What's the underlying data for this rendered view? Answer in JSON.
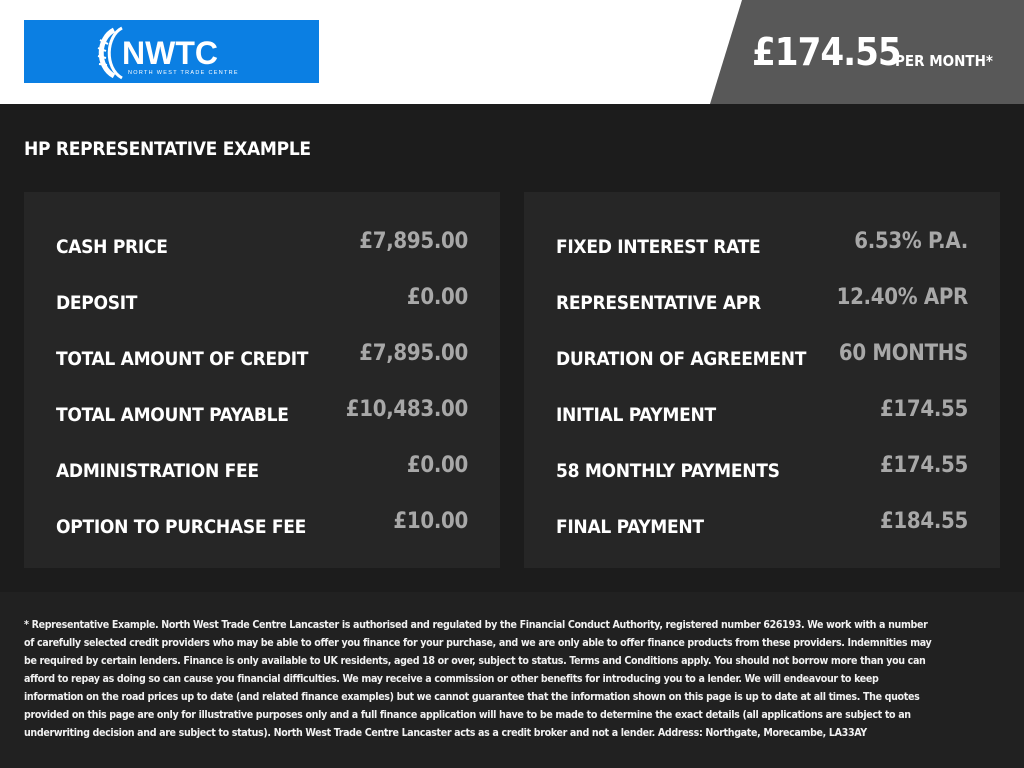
{
  "brand": {
    "logo_text": "NWTC",
    "logo_subtext": "NORTH WEST TRADE CENTRE",
    "color": "#0b7fe3"
  },
  "header": {
    "price": "£174.55",
    "per_month": "PER MONTH*"
  },
  "heading": "HP REPRESENTATIVE EXAMPLE",
  "left": [
    {
      "label": "CASH PRICE",
      "value": "£7,895.00"
    },
    {
      "label": "DEPOSIT",
      "value": "£0.00"
    },
    {
      "label": "TOTAL AMOUNT OF CREDIT",
      "value": "£7,895.00"
    },
    {
      "label": "TOTAL AMOUNT PAYABLE",
      "value": "£10,483.00"
    },
    {
      "label": "ADMINISTRATION FEE",
      "value": "£0.00"
    },
    {
      "label": "OPTION TO PURCHASE FEE",
      "value": "£10.00"
    }
  ],
  "right": [
    {
      "label": "FIXED INTEREST RATE",
      "value": "6.53% P.A."
    },
    {
      "label": "REPRESENTATIVE APR",
      "value": "12.40% APR"
    },
    {
      "label": "DURATION OF AGREEMENT",
      "value": "60 MONTHS"
    },
    {
      "label": "INITIAL PAYMENT",
      "value": "£174.55"
    },
    {
      "label": "58 MONTHLY PAYMENTS",
      "value": "£174.55"
    },
    {
      "label": "FINAL PAYMENT",
      "value": "£184.55"
    }
  ],
  "disclaimer": "* Representative Example. North West Trade Centre Lancaster is authorised and regulated by the Financial Conduct Authority, registered number 626193. We work with a number of carefully selected credit providers who may be able to offer you finance for your purchase, and we are only able to offer finance products from these providers. Indemnities may be required by certain lenders. Finance is only available to UK residents, aged 18 or over, subject to status. Terms and Conditions apply. You should not borrow more than you can afford to repay as doing so can cause you financial difficulties. We may receive a commission or other benefits for introducing you to a lender. We will endeavour to keep information on the road prices up to date (and related finance examples) but we cannot guarantee that the information shown on this page is up to date at all times. The quotes provided on this page are only for illustrative purposes only and a full finance application will have to be made to determine the exact details (all applications are subject to an underwriting decision and are subject to status). North West Trade Centre Lancaster acts as a credit broker and not a lender. Address: Northgate, Morecambe, LA33AY"
}
